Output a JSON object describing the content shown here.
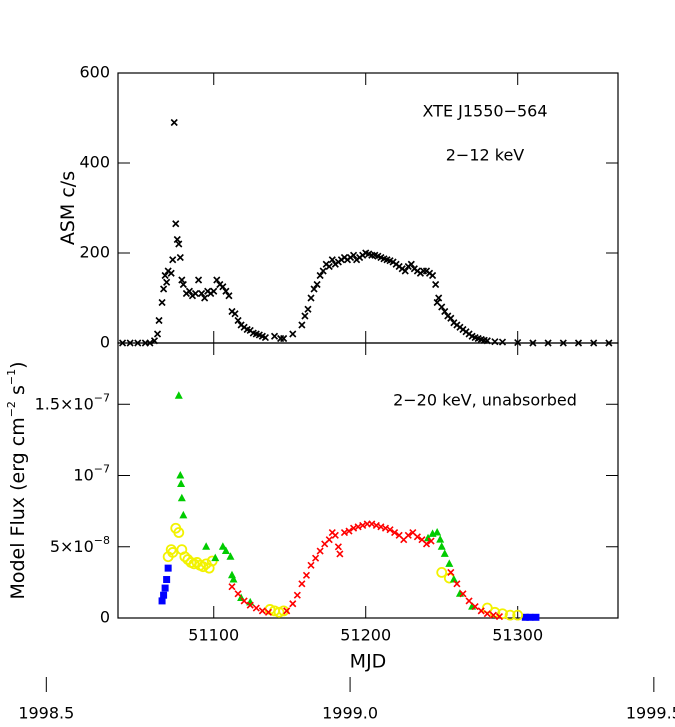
{
  "chart_data": [
    {
      "type": "scatter",
      "ylabel": "ASM c/s",
      "annotations": [
        "XTE J1550−564",
        "2−12 keV"
      ],
      "xlim": [
        51037,
        51366
      ],
      "xticks": [
        51100,
        51200,
        51300
      ],
      "ylim": [
        0,
        600
      ],
      "yticks": [
        0,
        200,
        400,
        600
      ],
      "series": [
        {
          "name": "ASM",
          "color": "#000000",
          "marker": "cross",
          "x": [
            51040,
            51045,
            51050,
            51055,
            51058,
            51061,
            51063,
            51064,
            51066,
            51067,
            51068,
            51069,
            51070,
            51072,
            51073,
            51074,
            51075,
            51076,
            51077,
            51078,
            51079,
            51080,
            51082,
            51084,
            51086,
            51088,
            51090,
            51092,
            51094,
            51096,
            51098,
            51100,
            51102,
            51104,
            51106,
            51108,
            51110,
            51112,
            51114,
            51116,
            51118,
            51120,
            51122,
            51124,
            51126,
            51128,
            51130,
            51132,
            51134,
            51140,
            51144,
            51146,
            51152,
            51158,
            51160,
            51162,
            51164,
            51166,
            51168,
            51170,
            51172,
            51174,
            51176,
            51178,
            51180,
            51182,
            51184,
            51186,
            51188,
            51190,
            51192,
            51194,
            51196,
            51198,
            51200,
            51202,
            51204,
            51206,
            51208,
            51210,
            51212,
            51214,
            51216,
            51218,
            51220,
            51222,
            51224,
            51226,
            51228,
            51230,
            51232,
            51234,
            51236,
            51238,
            51240,
            51242,
            51244,
            51246,
            51247,
            51248,
            51250,
            51252,
            51254,
            51256,
            51258,
            51260,
            51262,
            51264,
            51266,
            51268,
            51270,
            51272,
            51274,
            51276,
            51278,
            51280,
            51285,
            51290,
            51300,
            51310,
            51320,
            51330,
            51340,
            51350,
            51360
          ],
          "values": [
            0,
            0,
            0,
            0,
            0,
            5,
            20,
            50,
            90,
            120,
            150,
            135,
            160,
            155,
            185,
            490,
            265,
            230,
            220,
            190,
            140,
            130,
            110,
            115,
            105,
            110,
            140,
            110,
            100,
            115,
            110,
            115,
            140,
            130,
            125,
            115,
            105,
            70,
            65,
            50,
            40,
            35,
            30,
            28,
            22,
            20,
            18,
            15,
            12,
            15,
            10,
            10,
            20,
            40,
            60,
            75,
            100,
            120,
            130,
            150,
            160,
            175,
            170,
            185,
            175,
            180,
            185,
            190,
            185,
            190,
            195,
            185,
            190,
            195,
            200,
            198,
            195,
            195,
            193,
            190,
            187,
            185,
            183,
            180,
            175,
            170,
            165,
            160,
            170,
            175,
            165,
            160,
            155,
            160,
            160,
            155,
            150,
            130,
            90,
            100,
            80,
            70,
            60,
            55,
            45,
            40,
            35,
            30,
            25,
            20,
            15,
            12,
            10,
            8,
            6,
            5,
            3,
            2,
            1,
            0,
            0,
            0,
            0,
            0,
            0
          ]
        }
      ]
    },
    {
      "type": "scatter",
      "xlabel": "MJD",
      "ylabel": "Model Flux (erg cm−2 s−1)",
      "annotations": [
        "2−20 keV, unabsorbed"
      ],
      "xlim": [
        51037,
        51366
      ],
      "xticks": [
        51100,
        51200,
        51300
      ],
      "ylim": [
        0,
        1.93e-07
      ],
      "yticks": [
        0,
        {
          "value": 5e-08,
          "label": "5×10−8"
        },
        {
          "value": 1e-07,
          "label": "10−7"
        },
        {
          "value": 1.5e-07,
          "label": "1.5×10−7"
        }
      ],
      "x2lim": [
        1998.618,
        1999.441
      ],
      "x2ticks": [
        {
          "value": 1998.5,
          "label": "1998.5"
        },
        {
          "value": 1999.0,
          "label": "1999.0"
        },
        {
          "value": 1999.5,
          "label": "1999.5"
        }
      ],
      "series": [
        {
          "name": "blue",
          "color": "#0000ff",
          "marker": "square",
          "x": [
            51066,
            51067,
            51068,
            51069,
            51070,
            51305,
            51308,
            51312
          ],
          "values": [
            1.2e-08,
            1.6e-08,
            2.1e-08,
            2.7e-08,
            3.5e-08,
            5e-10,
            5e-10,
            5e-10
          ]
        },
        {
          "name": "yellow",
          "color": "#f2f200",
          "marker": "circle",
          "x": [
            51070,
            51072,
            51073,
            51075,
            51077,
            51079,
            51081,
            51083,
            51085,
            51087,
            51089,
            51091,
            51093,
            51095,
            51097,
            51099,
            51137,
            51140,
            51143,
            51146,
            51250,
            51255,
            51280,
            51285,
            51290,
            51295,
            51300
          ],
          "values": [
            4.3e-08,
            4.8e-08,
            4.6e-08,
            6.3e-08,
            6e-08,
            4.8e-08,
            4.3e-08,
            4.1e-08,
            3.9e-08,
            3.8e-08,
            3.9e-08,
            3.7e-08,
            3.6e-08,
            3.8e-08,
            3.5e-08,
            4e-08,
            6e-09,
            5e-09,
            4e-09,
            5e-09,
            3.2e-08,
            2.8e-08,
            7e-09,
            4e-09,
            3e-09,
            2e-09,
            2e-09
          ]
        },
        {
          "name": "green",
          "color": "#00cc00",
          "marker": "triangle",
          "x": [
            51077,
            51078,
            51078.5,
            51079,
            51080,
            51095,
            51101,
            51106,
            51108,
            51111,
            51112,
            51113,
            51118,
            51124,
            51241,
            51244,
            51247,
            51249,
            51250,
            51252,
            51255,
            51258,
            51262,
            51270
          ],
          "values": [
            1.56e-07,
            1e-07,
            9.4e-08,
            8.4e-08,
            7.2e-08,
            5e-08,
            4.2e-08,
            5e-08,
            4.7e-08,
            4.3e-08,
            3e-08,
            2.7e-08,
            1.4e-08,
            1.1e-08,
            5.6e-08,
            5.9e-08,
            6e-08,
            5.5e-08,
            5e-08,
            4.5e-08,
            3.8e-08,
            2.7e-08,
            1.7e-08,
            8e-09
          ]
        },
        {
          "name": "red",
          "color": "#ff0000",
          "marker": "cross",
          "x": [
            51112,
            51116,
            51120,
            51124,
            51128,
            51132,
            51136,
            51148,
            51152,
            51155,
            51158,
            51161,
            51164,
            51167,
            51170,
            51173,
            51176,
            51178,
            51180,
            51182,
            51183,
            51186,
            51189,
            51192,
            51195,
            51198,
            51201,
            51204,
            51207,
            51210,
            51213,
            51216,
            51219,
            51222,
            51225,
            51228,
            51231,
            51234,
            51237,
            51240,
            51243,
            51256,
            51260,
            51264,
            51268,
            51272,
            51276,
            51280,
            51284,
            51288
          ],
          "values": [
            2.2e-08,
            1.7e-08,
            1.2e-08,
            9e-09,
            7e-09,
            5e-09,
            4e-09,
            5e-09,
            1e-08,
            1.6e-08,
            2.4e-08,
            3e-08,
            3.7e-08,
            4.2e-08,
            4.7e-08,
            5.2e-08,
            5.5e-08,
            6e-08,
            5.8e-08,
            5e-08,
            4.5e-08,
            6e-08,
            6.1e-08,
            6.3e-08,
            6.4e-08,
            6.5e-08,
            6.6e-08,
            6.6e-08,
            6.5e-08,
            6.4e-08,
            6.3e-08,
            6.2e-08,
            6e-08,
            5.8e-08,
            5.5e-08,
            5.8e-08,
            6e-08,
            5.7e-08,
            5.5e-08,
            5.2e-08,
            5.4e-08,
            3.2e-08,
            2.4e-08,
            1.7e-08,
            1.2e-08,
            8e-09,
            5e-09,
            3e-09,
            2e-09,
            1e-09
          ]
        }
      ]
    }
  ]
}
